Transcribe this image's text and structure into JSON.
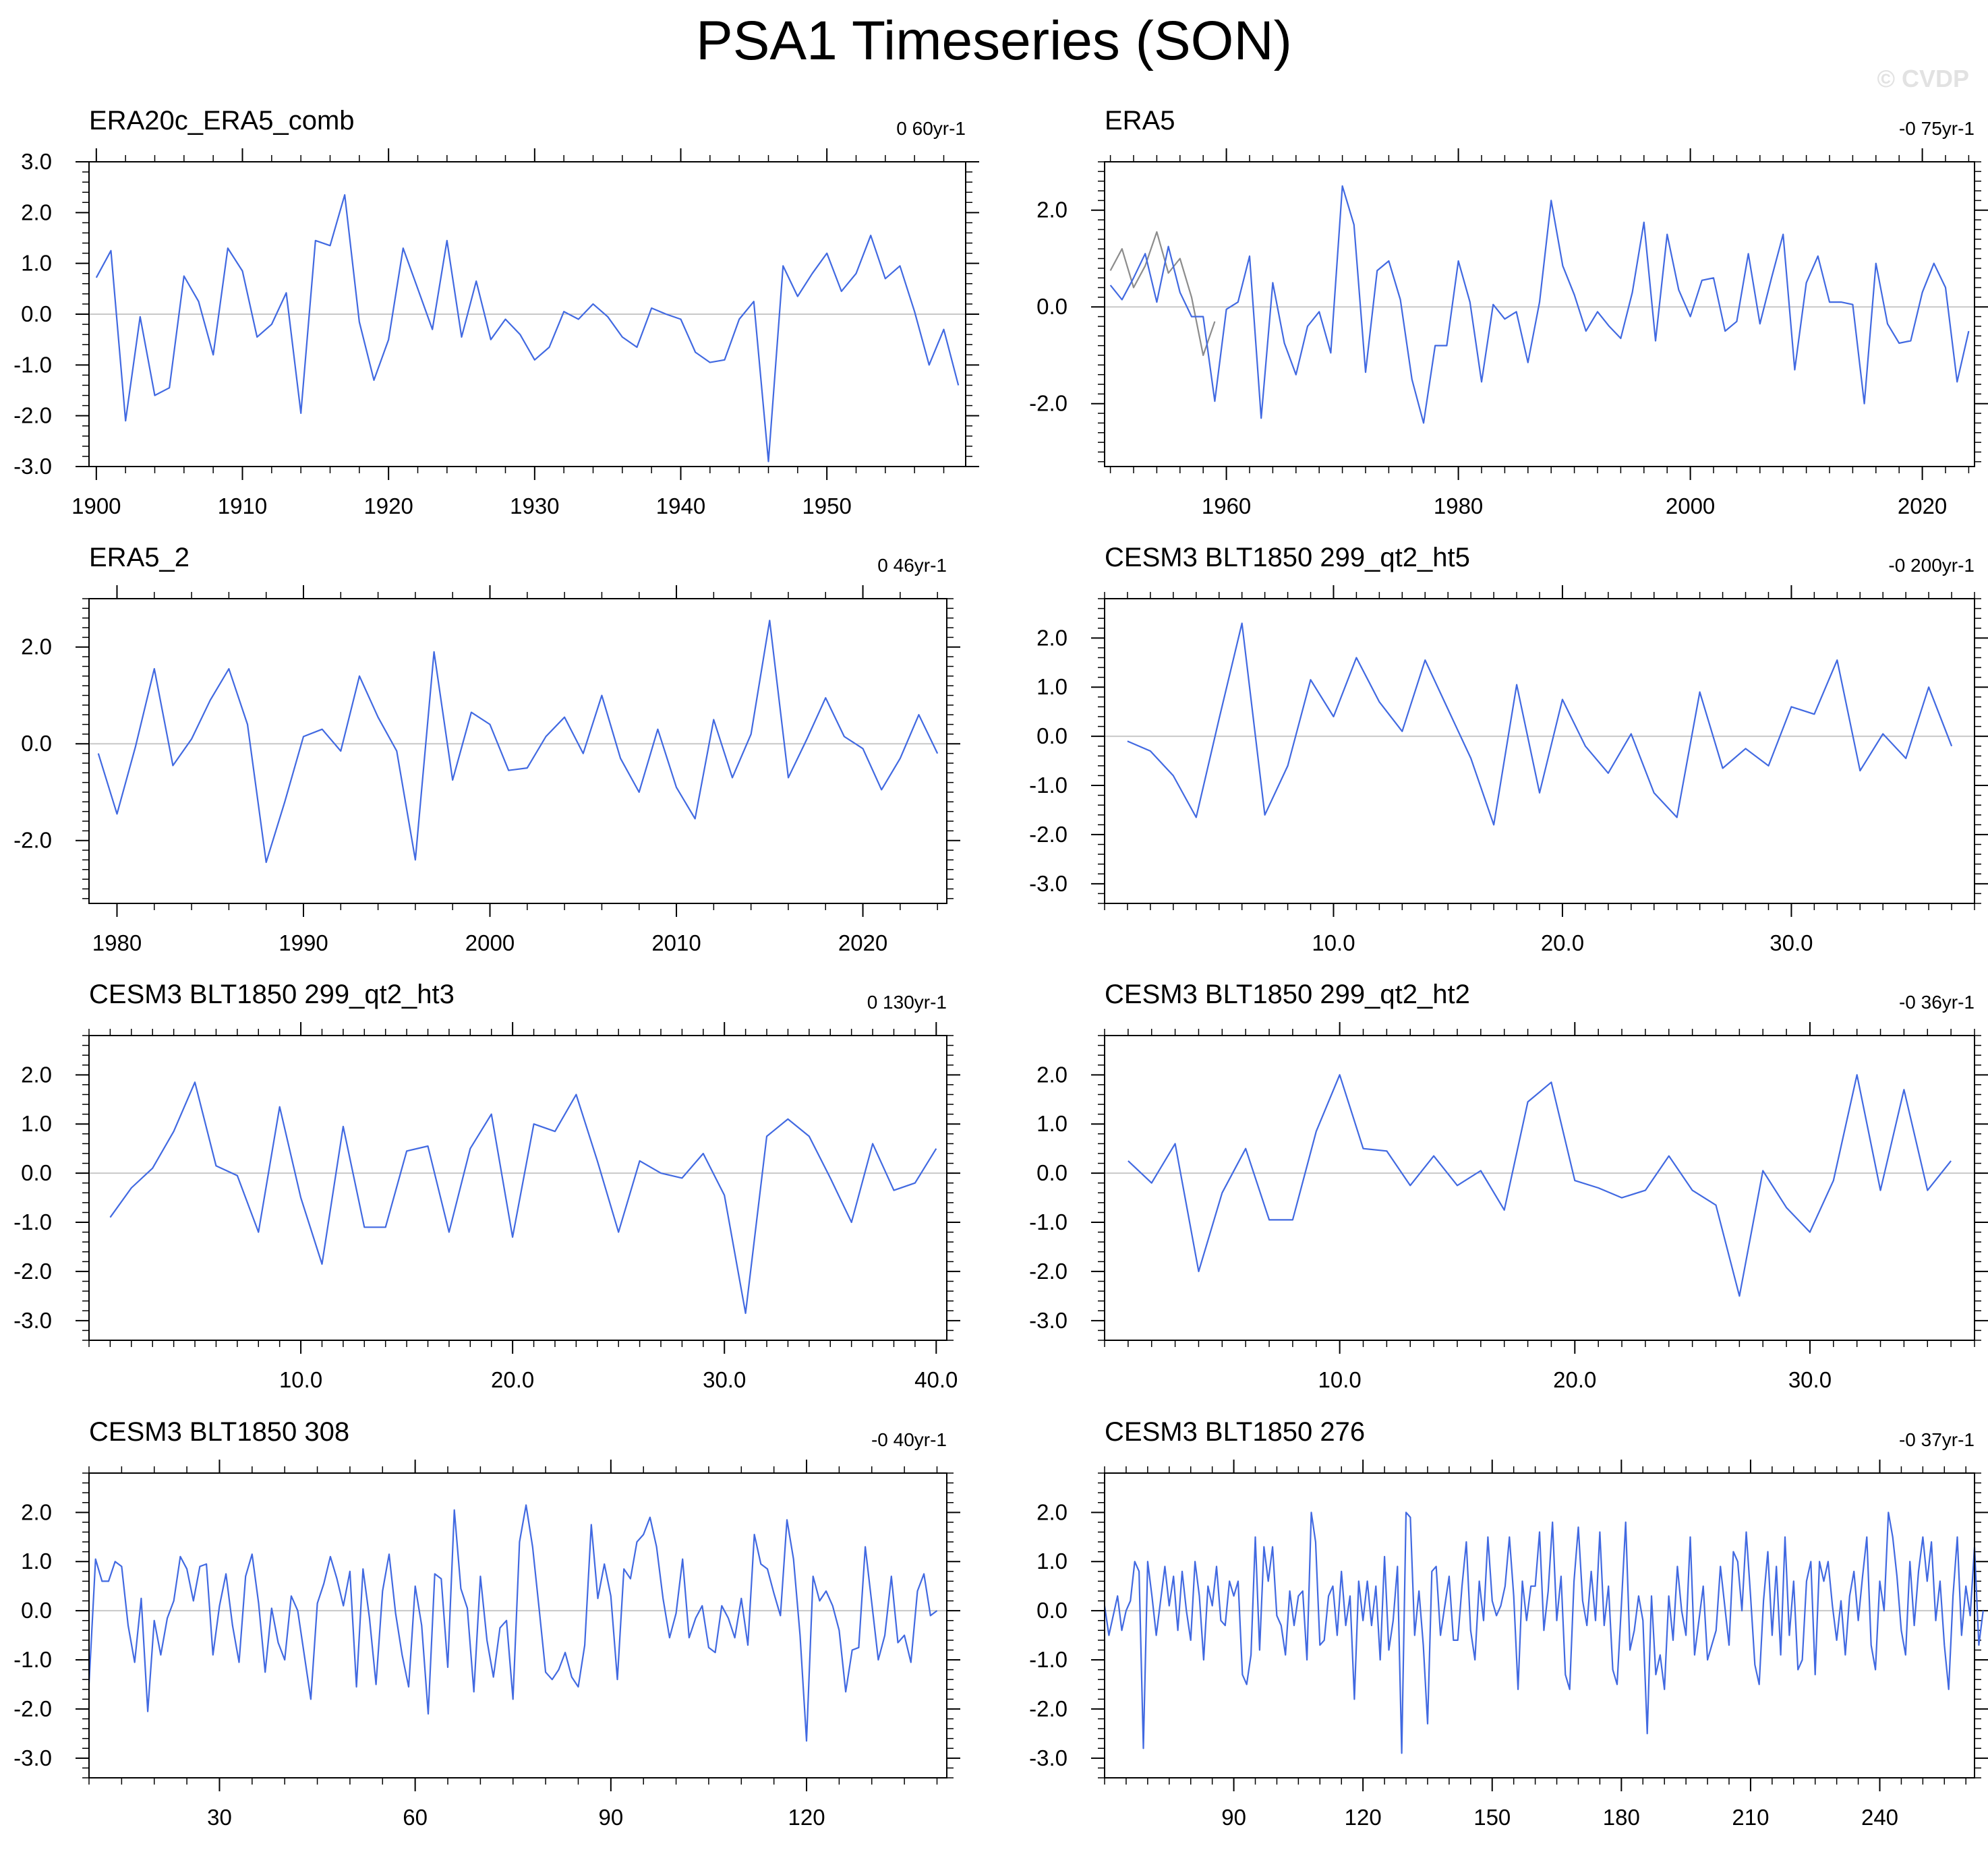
{
  "figure": {
    "title": "PSA1 Timeseries (SON)",
    "watermark": "© CVDP",
    "colors": {
      "line": "#4169e1",
      "overlay": "#8c8c8c",
      "axis": "#000000",
      "zero": "#c8c8c8"
    }
  },
  "chart_data": [
    {
      "type": "line",
      "title": "ERA20c_ERA5_comb",
      "trend": "0 60yr-1",
      "xlim": [
        1899.5,
        1959.5
      ],
      "ylim": [
        -3,
        3
      ],
      "yticks": [
        -3,
        -2,
        -1,
        0,
        1,
        2,
        3
      ],
      "ytick_labels": [
        "-3.0",
        "-2.0",
        "-1.0",
        "0.0",
        "1.0",
        "2.0",
        "3.0"
      ],
      "xticks": [
        1900,
        1910,
        1920,
        1930,
        1940,
        1950
      ],
      "xtick_labels": [
        "1900",
        "1910",
        "1920",
        "1930",
        "1940",
        "1950"
      ],
      "x_start": 1900,
      "x_step": 1,
      "series": [
        {
          "name": "ERA20c_ERA5_comb",
          "values": [
            0.72,
            1.25,
            -2.1,
            -0.05,
            -1.6,
            -1.45,
            0.75,
            0.25,
            -0.8,
            1.3,
            0.85,
            -0.45,
            -0.2,
            0.42,
            -1.95,
            1.45,
            1.35,
            2.35,
            -0.15,
            -1.3,
            -0.5,
            1.3,
            0.5,
            -0.3,
            1.45,
            -0.45,
            0.65,
            -0.5,
            -0.1,
            -0.4,
            -0.9,
            -0.65,
            0.05,
            -0.1,
            0.2,
            -0.05,
            -0.45,
            -0.65,
            0.12,
            0.0,
            -0.1,
            -0.75,
            -0.95,
            -0.9,
            -0.1,
            0.25,
            -2.9,
            0.95,
            0.35,
            0.8,
            1.2,
            0.45,
            0.8,
            1.55,
            0.7,
            0.95,
            0.05,
            -1.0,
            -0.3,
            -1.4
          ]
        }
      ]
    },
    {
      "type": "line",
      "title": "ERA5",
      "trend": "-0 75yr-1",
      "xlim": [
        1949.5,
        2024.5
      ],
      "ylim": [
        -3.3,
        3.0
      ],
      "yticks": [
        -2,
        0,
        2
      ],
      "ytick_labels": [
        "-2.0",
        "0.0",
        "2.0"
      ],
      "xticks": [
        1960,
        1980,
        2000,
        2020
      ],
      "xtick_labels": [
        "1960",
        "1980",
        "2000",
        "2020"
      ],
      "x_start": 1950,
      "x_step": 1,
      "series": [
        {
          "name": "ERA5 (gray)",
          "x_start": 1950,
          "values": [
            0.75,
            1.2,
            0.4,
            0.85,
            1.55,
            0.7,
            1.0,
            0.2,
            -1.0,
            -0.3
          ]
        },
        {
          "name": "ERA5",
          "values": [
            0.45,
            0.15,
            0.6,
            1.1,
            0.1,
            1.25,
            0.3,
            -0.2,
            -0.2,
            -1.95,
            -0.05,
            0.1,
            1.05,
            -2.3,
            0.5,
            -0.75,
            -1.4,
            -0.4,
            -0.1,
            -0.95,
            2.5,
            1.7,
            -1.35,
            0.75,
            0.95,
            0.15,
            -1.5,
            -2.4,
            -0.8,
            -0.8,
            0.95,
            0.1,
            -1.55,
            0.05,
            -0.25,
            -0.1,
            -1.15,
            0.1,
            2.2,
            0.85,
            0.25,
            -0.5,
            -0.1,
            -0.4,
            -0.65,
            0.3,
            1.75,
            -0.7,
            1.5,
            0.35,
            -0.2,
            0.55,
            0.6,
            -0.5,
            -0.3,
            1.1,
            -0.35,
            0.6,
            1.5,
            -1.3,
            0.5,
            1.05,
            0.1,
            0.1,
            0.05,
            -2.0,
            0.9,
            -0.35,
            -0.75,
            -0.7,
            0.3,
            0.9,
            0.4,
            -1.55,
            -0.5
          ]
        }
      ]
    },
    {
      "type": "line",
      "title": "ERA5_2",
      "trend": "0 46yr-1",
      "xlim": [
        1978.5,
        2024.5
      ],
      "ylim": [
        -3.3,
        3.0
      ],
      "yticks": [
        -2,
        0,
        2
      ],
      "ytick_labels": [
        "-2.0",
        "0.0",
        "2.0"
      ],
      "xticks": [
        1980,
        1990,
        2000,
        2010,
        2020
      ],
      "xtick_labels": [
        "1980",
        "1990",
        "2000",
        "2010",
        "2020"
      ],
      "x_start": 1979,
      "x_step": 1,
      "series": [
        {
          "name": "ERA5_2",
          "values": [
            -0.2,
            -1.45,
            -0.05,
            1.55,
            -0.45,
            0.1,
            0.9,
            1.55,
            0.4,
            -2.45,
            -1.2,
            0.15,
            0.3,
            -0.15,
            1.4,
            0.55,
            -0.15,
            -2.4,
            1.9,
            -0.75,
            0.65,
            0.4,
            -0.55,
            -0.5,
            0.15,
            0.55,
            -0.2,
            1.0,
            -0.3,
            -1.0,
            0.3,
            -0.9,
            -1.55,
            0.5,
            -0.7,
            0.2,
            2.55,
            -0.7,
            0.1,
            0.95,
            0.15,
            -0.1,
            -0.95,
            -0.3,
            0.6,
            -0.2
          ]
        }
      ]
    },
    {
      "type": "line",
      "title": "CESM3 BLT1850 299_qt2_ht5",
      "trend": "-0 200yr-1",
      "xlim": [
        0,
        38
      ],
      "ylim": [
        -3.4,
        2.8
      ],
      "yticks": [
        -3,
        -2,
        -1,
        0,
        1,
        2
      ],
      "ytick_labels": [
        "-3.0",
        "-2.0",
        "-1.0",
        "0.0",
        "1.0",
        "2.0"
      ],
      "xticks": [
        10,
        20,
        30
      ],
      "xtick_labels": [
        "10.0",
        "20.0",
        "30.0"
      ],
      "x_start": 1,
      "x_step": 1,
      "series": [
        {
          "name": "CESM3 BLT1850 299_qt2_ht5",
          "values": [
            -0.1,
            -0.3,
            -0.8,
            -1.65,
            0.35,
            2.3,
            -1.6,
            -0.6,
            1.15,
            0.4,
            1.6,
            0.7,
            0.1,
            1.55,
            0.55,
            -0.45,
            -1.8,
            1.05,
            -1.15,
            0.75,
            -0.2,
            -0.75,
            0.05,
            -1.15,
            -1.65,
            0.9,
            -0.65,
            -0.25,
            -0.6,
            0.6,
            0.45,
            1.55,
            -0.7,
            0.05,
            -0.45,
            1.0,
            -0.2
          ]
        }
      ]
    },
    {
      "type": "line",
      "title": "CESM3 BLT1850 299_qt2_ht3",
      "trend": "0 130yr-1",
      "xlim": [
        0,
        40.5
      ],
      "ylim": [
        -3.4,
        2.8
      ],
      "yticks": [
        -3,
        -2,
        -1,
        0,
        1,
        2
      ],
      "ytick_labels": [
        "-3.0",
        "-2.0",
        "-1.0",
        "0.0",
        "1.0",
        "2.0"
      ],
      "xticks": [
        10,
        20,
        30,
        40
      ],
      "xtick_labels": [
        "10.0",
        "20.0",
        "30.0",
        "40.0"
      ],
      "x_start": 1,
      "x_step": 1,
      "series": [
        {
          "name": "CESM3 BLT1850 299_qt2_ht3",
          "values": [
            -0.9,
            -0.3,
            0.1,
            0.85,
            1.85,
            0.15,
            -0.05,
            -1.2,
            1.35,
            -0.5,
            -1.85,
            0.95,
            -1.1,
            -1.1,
            0.45,
            0.55,
            -1.2,
            0.5,
            1.2,
            -1.3,
            1.0,
            0.85,
            1.6,
            0.25,
            -1.2,
            0.25,
            0.0,
            -0.1,
            0.4,
            -0.45,
            -2.85,
            0.75,
            1.1,
            0.75,
            -0.1,
            -1.0,
            0.6,
            -0.35,
            -0.2,
            0.5
          ]
        }
      ]
    },
    {
      "type": "line",
      "title": "CESM3 BLT1850 299_qt2_ht2",
      "trend": "-0 36yr-1",
      "xlim": [
        0,
        37
      ],
      "ylim": [
        -3.4,
        2.8
      ],
      "yticks": [
        -3,
        -2,
        -1,
        0,
        1,
        2
      ],
      "ytick_labels": [
        "-3.0",
        "-2.0",
        "-1.0",
        "0.0",
        "1.0",
        "2.0"
      ],
      "xticks": [
        10,
        20,
        30
      ],
      "xtick_labels": [
        "10.0",
        "20.0",
        "30.0"
      ],
      "x_start": 1,
      "x_step": 1,
      "series": [
        {
          "name": "CESM3 BLT1850 299_qt2_ht2",
          "values": [
            0.25,
            -0.2,
            0.6,
            -2.0,
            -0.4,
            0.5,
            -0.95,
            -0.95,
            0.85,
            2.0,
            0.5,
            0.45,
            -0.25,
            0.35,
            -0.25,
            0.05,
            -0.75,
            1.45,
            1.85,
            -0.15,
            -0.3,
            -0.5,
            -0.35,
            0.35,
            -0.35,
            -0.65,
            -2.5,
            0.05,
            -0.7,
            -1.2,
            -0.15,
            2.0,
            -0.35,
            1.7,
            -0.35,
            0.25
          ]
        }
      ]
    },
    {
      "type": "line",
      "title": "CESM3 BLT1850 308",
      "trend": "-0 40yr-1",
      "xlim": [
        10,
        141.5
      ],
      "ylim": [
        -3.4,
        2.8
      ],
      "yticks": [
        -3,
        -2,
        -1,
        0,
        1,
        2
      ],
      "ytick_labels": [
        "-3.0",
        "-2.0",
        "-1.0",
        "0.0",
        "1.0",
        "2.0"
      ],
      "xticks": [
        30,
        60,
        90,
        120
      ],
      "xtick_labels": [
        "30",
        "60",
        "90",
        "120"
      ],
      "x_start": 10,
      "x_step": 1,
      "series": [
        {
          "name": "CESM3 BLT1850 308",
          "values": [
            -1.5,
            1.05,
            0.6,
            0.6,
            1.0,
            0.9,
            -0.3,
            -1.05,
            0.25,
            -2.05,
            -0.2,
            -0.9,
            -0.15,
            0.2,
            1.1,
            0.85,
            0.2,
            0.9,
            0.95,
            -0.9,
            0.1,
            0.75,
            -0.3,
            -1.05,
            0.7,
            1.15,
            0.15,
            -1.25,
            0.05,
            -0.65,
            -1.0,
            0.3,
            0.0,
            -0.9,
            -1.8,
            0.15,
            0.55,
            1.1,
            0.65,
            0.1,
            0.8,
            -1.55,
            0.85,
            -0.15,
            -1.5,
            0.4,
            1.15,
            -0.05,
            -0.9,
            -1.55,
            0.5,
            -0.3,
            -2.1,
            0.75,
            0.65,
            -1.15,
            2.05,
            0.45,
            0.05,
            -1.65,
            0.7,
            -0.6,
            -1.35,
            -0.35,
            -0.2,
            -1.8,
            1.4,
            2.15,
            1.3,
            0.05,
            -1.25,
            -1.4,
            -1.2,
            -0.85,
            -1.35,
            -1.55,
            -0.7,
            1.75,
            0.25,
            0.95,
            0.3,
            -1.4,
            0.85,
            0.65,
            1.4,
            1.55,
            1.9,
            1.3,
            0.25,
            -0.55,
            -0.05,
            1.05,
            -0.55,
            -0.15,
            0.1,
            -0.75,
            -0.85,
            0.1,
            -0.15,
            -0.55,
            0.25,
            -0.7,
            1.55,
            0.95,
            0.85,
            0.35,
            -0.1,
            1.85,
            1.05,
            -0.5,
            -2.65,
            0.7,
            0.2,
            0.4,
            0.1,
            -0.4,
            -1.65,
            -0.8,
            -0.75,
            1.3,
            0.15,
            -1.0,
            -0.5,
            0.7,
            -0.65,
            -0.5,
            -1.05,
            0.4,
            0.75,
            -0.1,
            0.0
          ]
        }
      ]
    },
    {
      "type": "line",
      "title": "CESM3 BLT1850 276",
      "trend": "-0 37yr-1",
      "xlim": [
        60,
        262
      ],
      "ylim": [
        -3.4,
        2.8
      ],
      "yticks": [
        -3,
        -2,
        -1,
        0,
        1,
        2
      ],
      "ytick_labels": [
        "-3.0",
        "-2.0",
        "-1.0",
        "0.0",
        "1.0",
        "2.0"
      ],
      "xticks": [
        90,
        120,
        150,
        180,
        210,
        240
      ],
      "xtick_labels": [
        "90",
        "120",
        "150",
        "180",
        "210",
        "240"
      ],
      "x_start": 60,
      "x_step": 1,
      "series": [
        {
          "name": "CESM3 BLT1850 276",
          "values": [
            0.1,
            -0.5,
            -0.1,
            0.3,
            -0.4,
            0.0,
            0.2,
            1.0,
            0.8,
            -2.8,
            1.0,
            0.3,
            -0.5,
            0.2,
            0.9,
            0.1,
            0.7,
            -0.4,
            0.8,
            0.0,
            -0.6,
            1.0,
            0.3,
            -1.0,
            0.5,
            0.1,
            0.9,
            -0.2,
            -0.3,
            0.6,
            0.3,
            0.6,
            -1.3,
            -1.5,
            -0.9,
            1.5,
            -0.8,
            1.3,
            0.6,
            1.3,
            -0.1,
            -0.3,
            -0.9,
            0.4,
            -0.3,
            0.3,
            0.4,
            -1.0,
            2.0,
            1.4,
            -0.7,
            -0.6,
            0.3,
            0.5,
            -0.5,
            0.8,
            -0.3,
            0.3,
            -1.8,
            0.6,
            -0.2,
            0.6,
            -0.3,
            0.5,
            -1.0,
            1.1,
            -0.8,
            -0.2,
            0.9,
            -2.9,
            2.0,
            1.9,
            -0.5,
            0.4,
            -0.7,
            -2.3,
            0.8,
            0.9,
            -0.5,
            0.1,
            0.7,
            -0.6,
            -0.6,
            0.5,
            1.4,
            -0.4,
            -1.0,
            0.6,
            -0.2,
            1.5,
            0.2,
            -0.1,
            0.1,
            0.5,
            1.5,
            0.3,
            -1.6,
            0.6,
            -0.2,
            0.5,
            0.5,
            1.6,
            -0.4,
            0.4,
            1.8,
            -0.2,
            0.7,
            -1.3,
            -1.6,
            0.6,
            1.7,
            0.2,
            -0.3,
            0.8,
            -0.2,
            1.6,
            -0.3,
            0.5,
            -1.2,
            -1.5,
            0.1,
            1.8,
            -0.8,
            -0.4,
            0.3,
            -0.2,
            -2.5,
            0.3,
            -1.3,
            -0.9,
            -1.6,
            0.3,
            -0.6,
            0.9,
            0.0,
            -0.5,
            1.5,
            -0.9,
            -0.2,
            0.5,
            -1.0,
            -0.7,
            -0.4,
            0.9,
            0.1,
            -0.7,
            1.2,
            1.0,
            0.0,
            1.6,
            0.3,
            -1.1,
            -1.5,
            0.2,
            1.2,
            -0.5,
            0.9,
            -0.9,
            1.5,
            -0.5,
            0.6,
            -1.2,
            -1.0,
            0.6,
            1.0,
            -1.3,
            1.0,
            0.6,
            1.0,
            0.1,
            -0.6,
            0.2,
            -0.9,
            0.3,
            0.8,
            -0.2,
            0.7,
            1.5,
            -0.7,
            -1.2,
            0.6,
            0.0,
            2.0,
            1.5,
            0.7,
            -0.4,
            -0.9,
            1.0,
            -0.3,
            0.8,
            1.5,
            0.6,
            1.4,
            -0.2,
            0.6,
            -0.7,
            -1.6,
            0.3,
            1.5,
            -0.5,
            0.5,
            -0.1,
            1.3,
            -0.7,
            0.0
          ]
        }
      ]
    }
  ]
}
